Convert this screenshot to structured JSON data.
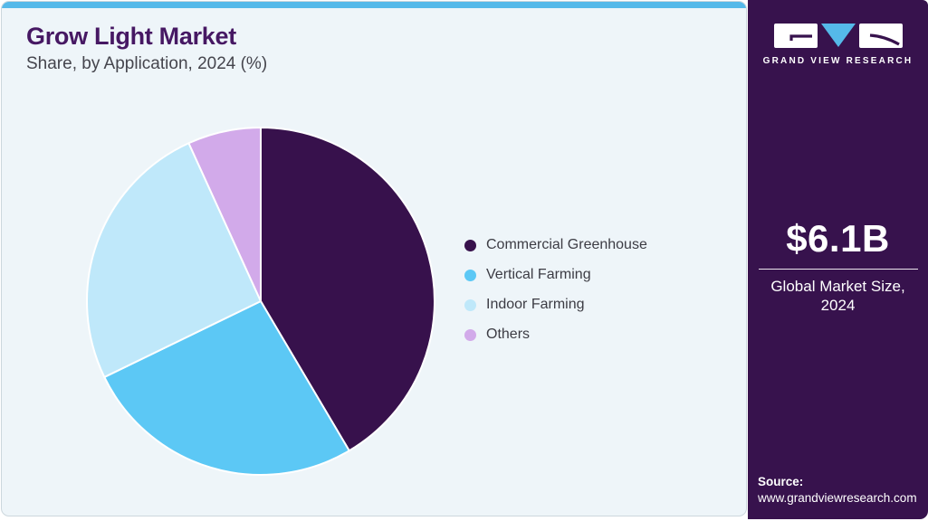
{
  "header": {
    "title": "Grow Light Market",
    "subtitle": "Share, by Application, 2024 (%)"
  },
  "colors": {
    "top_bar": "#55b9e9",
    "panel_bg": "#eef5f9",
    "panel_border": "#ccd7dd",
    "title": "#461863",
    "subtitle": "#45454d",
    "legend_text": "#3c3c44",
    "sidebar_bg": "#37124d",
    "sidebar_text": "#ffffff"
  },
  "chart_data": {
    "type": "pie",
    "title": "Grow Light Market Share, by Application, 2024 (%)",
    "categories": [
      "Commercial Greenhouse",
      "Vertical Farming",
      "Indoor Farming",
      "Others"
    ],
    "values": [
      41.5,
      26.3,
      25.4,
      6.8
    ],
    "unit": "%",
    "colors": [
      "#37114c",
      "#5cc8f5",
      "#bfe8fa",
      "#d2aaea"
    ],
    "start_angle_deg": 0,
    "direction": "clockwise",
    "legend_position": "right",
    "slice_separator_color": "#ffffff"
  },
  "sidebar": {
    "logo": {
      "brand": "GRAND VIEW RESEARCH",
      "triangle_color": "#55b9e9",
      "glyph_color": "#37124d"
    },
    "market_size_value": "$6.1B",
    "market_size_label": "Global Market Size, 2024",
    "source_label": "Source:",
    "source_url": "www.grandviewresearch.com"
  }
}
